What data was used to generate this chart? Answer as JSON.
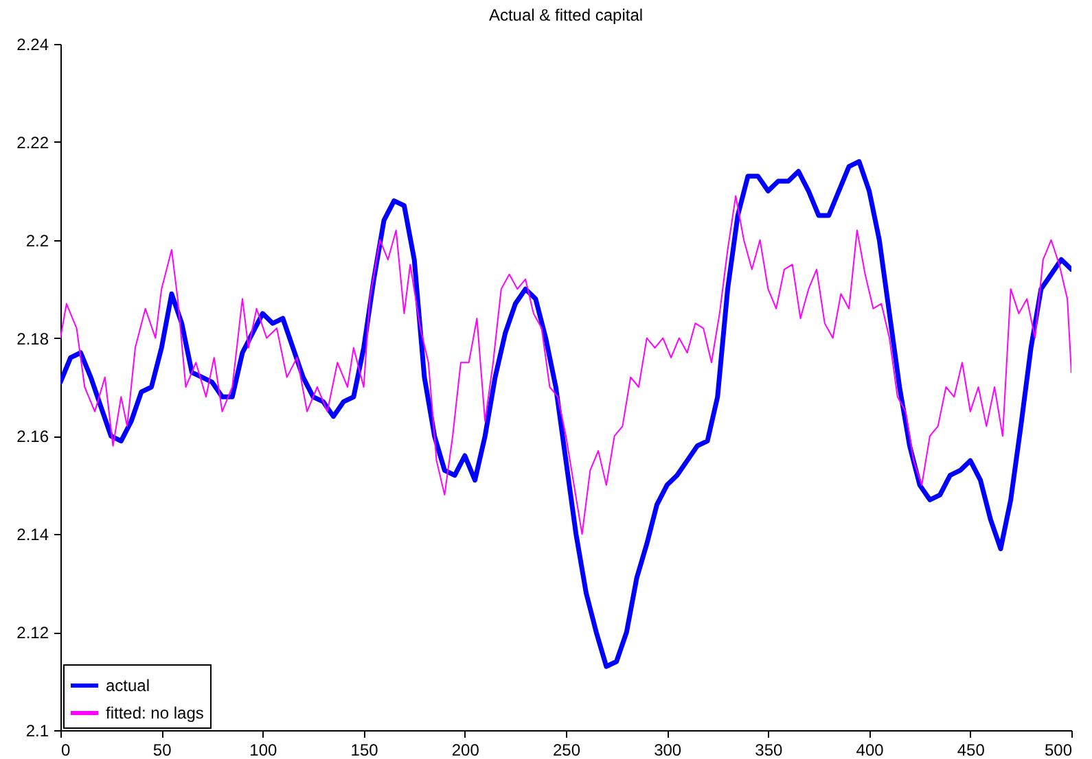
{
  "chart_data": {
    "type": "line",
    "title": "Actual & fitted capital",
    "xlim": [
      0,
      500
    ],
    "ylim": [
      2.1,
      2.24
    ],
    "xticks": [
      0,
      50,
      100,
      150,
      200,
      250,
      300,
      350,
      400,
      450,
      500
    ],
    "yticks": [
      2.1,
      2.12,
      2.14,
      2.16,
      2.18,
      2.2,
      2.22,
      2.24
    ],
    "grid": false,
    "legend": "bottom left",
    "series": [
      {
        "name": "actual",
        "color": "#0000ff",
        "x": [
          0,
          5,
          10,
          15,
          20,
          25,
          30,
          35,
          40,
          45,
          50,
          55,
          60,
          65,
          70,
          75,
          80,
          85,
          90,
          95,
          100,
          105,
          110,
          115,
          120,
          125,
          130,
          135,
          140,
          145,
          150,
          155,
          160,
          165,
          170,
          175,
          180,
          185,
          190,
          195,
          200,
          205,
          210,
          215,
          220,
          225,
          230,
          235,
          240,
          245,
          250,
          255,
          260,
          265,
          270,
          275,
          280,
          285,
          290,
          295,
          300,
          305,
          310,
          315,
          320,
          325,
          330,
          335,
          340,
          345,
          350,
          355,
          360,
          365,
          370,
          375,
          380,
          385,
          390,
          395,
          400,
          405,
          410,
          415,
          420,
          425,
          430,
          435,
          440,
          445,
          450,
          455,
          460,
          465,
          470,
          475,
          480,
          485,
          490,
          495,
          500
        ],
        "values": [
          2.171,
          2.176,
          2.177,
          2.172,
          2.166,
          2.16,
          2.159,
          2.163,
          2.169,
          2.17,
          2.178,
          2.189,
          2.183,
          2.173,
          2.172,
          2.171,
          2.168,
          2.168,
          2.177,
          2.181,
          2.185,
          2.183,
          2.184,
          2.178,
          2.172,
          2.168,
          2.167,
          2.164,
          2.167,
          2.168,
          2.178,
          2.192,
          2.204,
          2.208,
          2.207,
          2.196,
          2.172,
          2.16,
          2.153,
          2.152,
          2.156,
          2.151,
          2.16,
          2.172,
          2.181,
          2.187,
          2.19,
          2.188,
          2.18,
          2.17,
          2.155,
          2.14,
          2.128,
          2.12,
          2.113,
          2.114,
          2.12,
          2.131,
          2.138,
          2.146,
          2.15,
          2.152,
          2.155,
          2.158,
          2.159,
          2.168,
          2.19,
          2.205,
          2.213,
          2.213,
          2.21,
          2.212,
          2.212,
          2.214,
          2.21,
          2.205,
          2.205,
          2.21,
          2.215,
          2.216,
          2.21,
          2.2,
          2.185,
          2.17,
          2.158,
          2.15,
          2.147,
          2.148,
          2.152,
          2.153,
          2.155,
          2.151,
          2.143,
          2.137,
          2.147,
          2.162,
          2.178,
          2.19,
          2.193,
          2.196,
          2.194
        ]
      },
      {
        "name": "fitted: no lags",
        "color": "#ff00ff",
        "x": [
          0,
          3,
          8,
          12,
          17,
          22,
          26,
          30,
          33,
          37,
          42,
          47,
          50,
          55,
          58,
          62,
          67,
          72,
          76,
          80,
          85,
          90,
          93,
          97,
          102,
          107,
          112,
          117,
          122,
          127,
          132,
          137,
          142,
          145,
          150,
          153,
          158,
          162,
          166,
          170,
          173,
          178,
          182,
          186,
          190,
          194,
          198,
          202,
          206,
          210,
          214,
          218,
          222,
          226,
          230,
          234,
          238,
          242,
          246,
          250,
          254,
          258,
          262,
          266,
          270,
          274,
          278,
          282,
          286,
          290,
          294,
          298,
          302,
          306,
          310,
          314,
          318,
          322,
          326,
          330,
          334,
          338,
          342,
          346,
          350,
          354,
          358,
          362,
          366,
          370,
          374,
          378,
          382,
          386,
          390,
          394,
          398,
          402,
          406,
          410,
          414,
          418,
          422,
          426,
          430,
          434,
          438,
          442,
          446,
          450,
          454,
          458,
          462,
          466,
          470,
          474,
          478,
          482,
          486,
          490,
          494,
          498,
          500
        ],
        "values": [
          2.18,
          2.187,
          2.182,
          2.17,
          2.165,
          2.172,
          2.158,
          2.168,
          2.162,
          2.178,
          2.186,
          2.18,
          2.19,
          2.198,
          2.188,
          2.17,
          2.175,
          2.168,
          2.176,
          2.165,
          2.17,
          2.188,
          2.178,
          2.186,
          2.18,
          2.182,
          2.172,
          2.176,
          2.165,
          2.17,
          2.165,
          2.175,
          2.17,
          2.178,
          2.17,
          2.188,
          2.2,
          2.196,
          2.202,
          2.185,
          2.195,
          2.182,
          2.175,
          2.155,
          2.148,
          2.16,
          2.175,
          2.175,
          2.184,
          2.163,
          2.175,
          2.19,
          2.193,
          2.19,
          2.192,
          2.185,
          2.182,
          2.17,
          2.168,
          2.16,
          2.15,
          2.14,
          2.153,
          2.157,
          2.15,
          2.16,
          2.162,
          2.172,
          2.17,
          2.18,
          2.178,
          2.18,
          2.176,
          2.18,
          2.177,
          2.183,
          2.182,
          2.175,
          2.185,
          2.198,
          2.209,
          2.2,
          2.194,
          2.2,
          2.19,
          2.186,
          2.194,
          2.195,
          2.184,
          2.19,
          2.194,
          2.183,
          2.18,
          2.189,
          2.186,
          2.202,
          2.193,
          2.186,
          2.187,
          2.18,
          2.168,
          2.165,
          2.155,
          2.15,
          2.16,
          2.162,
          2.17,
          2.168,
          2.175,
          2.165,
          2.17,
          2.162,
          2.17,
          2.16,
          2.19,
          2.185,
          2.188,
          2.18,
          2.196,
          2.2,
          2.195,
          2.188,
          2.173
        ]
      }
    ]
  }
}
